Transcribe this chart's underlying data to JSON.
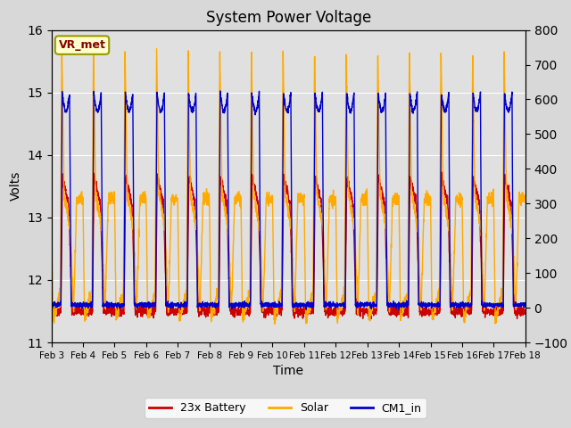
{
  "title": "System Power Voltage",
  "xlabel": "Time",
  "ylabel_left": "Volts",
  "ylim_left": [
    11.0,
    16.0
  ],
  "ylim_right": [
    -100,
    800
  ],
  "annotation": "VR_met",
  "legend": [
    "23x Battery",
    "Solar",
    "CM1_in"
  ],
  "colors": [
    "#cc0000",
    "#ffaa00",
    "#0000cc"
  ],
  "background_color": "#e0e0e0",
  "grid_color": "#ffffff",
  "x_tick_labels": [
    "Feb 3",
    "Feb 4",
    "Feb 5",
    "Feb 6",
    "Feb 7",
    "Feb 8",
    "Feb 9",
    "Feb 10",
    "Feb 11",
    "Feb 12",
    "Feb 13",
    "Feb 14",
    "Feb 15",
    "Feb 16",
    "Feb 17",
    "Feb 18"
  ],
  "num_days": 15,
  "points_per_day": 200
}
